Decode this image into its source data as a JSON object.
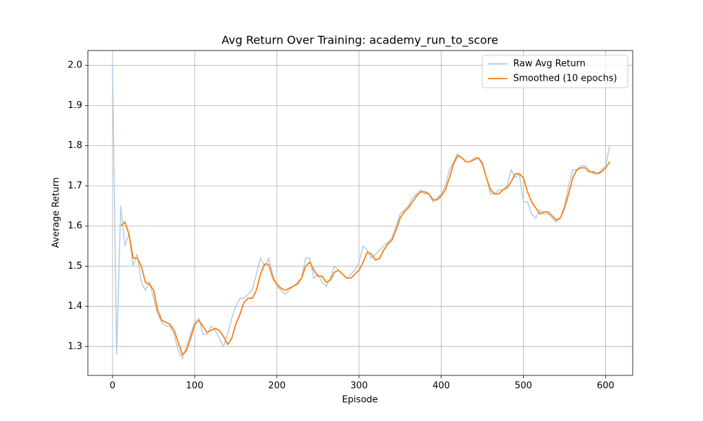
{
  "chart_data": {
    "type": "line",
    "title": "Avg Return Over Training: academy_run_to_score",
    "x_label": "Episode",
    "y_label": "Average Return",
    "x": [
      0,
      5,
      10,
      15,
      20,
      25,
      30,
      35,
      40,
      45,
      50,
      55,
      60,
      65,
      70,
      75,
      80,
      85,
      90,
      95,
      100,
      105,
      110,
      115,
      120,
      125,
      130,
      135,
      140,
      145,
      150,
      155,
      160,
      165,
      170,
      175,
      180,
      185,
      190,
      195,
      200,
      205,
      210,
      215,
      220,
      225,
      230,
      235,
      240,
      245,
      250,
      255,
      260,
      265,
      270,
      275,
      280,
      285,
      290,
      295,
      300,
      305,
      310,
      315,
      320,
      325,
      330,
      335,
      340,
      345,
      350,
      355,
      360,
      365,
      370,
      375,
      380,
      385,
      390,
      395,
      400,
      405,
      410,
      415,
      420,
      425,
      430,
      435,
      440,
      445,
      450,
      455,
      460,
      465,
      470,
      475,
      480,
      485,
      490,
      495,
      500,
      505,
      510,
      515,
      520,
      525,
      530,
      535,
      540,
      545,
      550,
      555,
      560,
      565,
      570,
      575,
      580,
      585,
      590,
      595,
      600,
      605
    ],
    "series": [
      {
        "name": "Raw Avg Return",
        "color": "#aecde6",
        "values": [
          2.0,
          1.28,
          1.65,
          1.55,
          1.58,
          1.5,
          1.53,
          1.46,
          1.44,
          1.46,
          1.42,
          1.38,
          1.36,
          1.35,
          1.35,
          1.33,
          1.29,
          1.27,
          1.3,
          1.33,
          1.36,
          1.37,
          1.33,
          1.33,
          1.35,
          1.34,
          1.32,
          1.3,
          1.33,
          1.37,
          1.4,
          1.42,
          1.42,
          1.43,
          1.44,
          1.48,
          1.52,
          1.5,
          1.52,
          1.48,
          1.45,
          1.44,
          1.43,
          1.44,
          1.45,
          1.46,
          1.47,
          1.52,
          1.52,
          1.47,
          1.48,
          1.46,
          1.45,
          1.47,
          1.5,
          1.49,
          1.48,
          1.47,
          1.48,
          1.49,
          1.51,
          1.55,
          1.54,
          1.52,
          1.53,
          1.54,
          1.55,
          1.56,
          1.57,
          1.6,
          1.63,
          1.64,
          1.65,
          1.67,
          1.68,
          1.69,
          1.68,
          1.68,
          1.66,
          1.67,
          1.68,
          1.7,
          1.74,
          1.76,
          1.78,
          1.77,
          1.76,
          1.76,
          1.77,
          1.77,
          1.76,
          1.72,
          1.68,
          1.68,
          1.69,
          1.69,
          1.7,
          1.74,
          1.72,
          1.73,
          1.66,
          1.66,
          1.63,
          1.62,
          1.64,
          1.63,
          1.63,
          1.62,
          1.61,
          1.62,
          1.65,
          1.7,
          1.74,
          1.74,
          1.75,
          1.75,
          1.74,
          1.73,
          1.73,
          1.74,
          1.75,
          1.8
        ]
      },
      {
        "name": "Smoothed (10 epochs)",
        "color": "#ff7f0e",
        "values": [
          null,
          null,
          1.6,
          1.61,
          1.58,
          1.52,
          1.52,
          1.5,
          1.46,
          1.455,
          1.44,
          1.39,
          1.365,
          1.36,
          1.355,
          1.34,
          1.31,
          1.28,
          1.29,
          1.32,
          1.355,
          1.365,
          1.35,
          1.335,
          1.34,
          1.345,
          1.34,
          1.325,
          1.305,
          1.32,
          1.355,
          1.38,
          1.41,
          1.42,
          1.42,
          1.44,
          1.48,
          1.505,
          1.505,
          1.47,
          1.455,
          1.445,
          1.44,
          1.445,
          1.45,
          1.455,
          1.47,
          1.5,
          1.51,
          1.49,
          1.475,
          1.475,
          1.46,
          1.465,
          1.485,
          1.49,
          1.48,
          1.47,
          1.47,
          1.48,
          1.49,
          1.51,
          1.535,
          1.53,
          1.515,
          1.52,
          1.54,
          1.555,
          1.565,
          1.59,
          1.62,
          1.635,
          1.645,
          1.66,
          1.675,
          1.685,
          1.685,
          1.68,
          1.665,
          1.665,
          1.675,
          1.69,
          1.72,
          1.755,
          1.775,
          1.77,
          1.76,
          1.76,
          1.765,
          1.77,
          1.755,
          1.72,
          1.69,
          1.68,
          1.68,
          1.69,
          1.695,
          1.71,
          1.73,
          1.73,
          1.72,
          1.685,
          1.66,
          1.645,
          1.63,
          1.635,
          1.635,
          1.625,
          1.615,
          1.62,
          1.645,
          1.68,
          1.72,
          1.74,
          1.745,
          1.745,
          1.735,
          1.735,
          1.73,
          1.735,
          1.745,
          1.76
        ]
      }
    ],
    "xlim": [
      -30,
      633
    ],
    "ylim": [
      1.228,
      2.037
    ],
    "xticks": [
      0,
      100,
      200,
      300,
      400,
      500,
      600
    ],
    "yticks": [
      1.3,
      1.4,
      1.5,
      1.6,
      1.7,
      1.8,
      1.9,
      {
        "value": 2,
        "label": "2.0"
      }
    ],
    "grid": true,
    "legend": "upper right"
  }
}
